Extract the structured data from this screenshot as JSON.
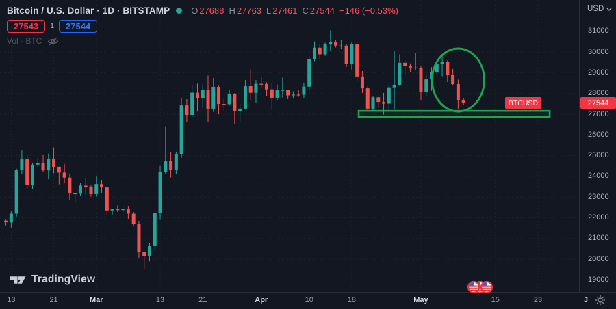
{
  "header": {
    "title": "Bitcoin / U.S. Dollar · 1D · BITSTAMP",
    "ohlc": {
      "o_key": "O",
      "o": "27688",
      "h_key": "H",
      "h": "27763",
      "l_key": "L",
      "l": "27461",
      "c_key": "C",
      "c": "27544",
      "change": "−146 (−0.53%)"
    },
    "bid": "27543",
    "spread": "1",
    "ask": "27544",
    "volume_label": "Vol · BTC"
  },
  "price_axis": {
    "currency": "USD",
    "ticks": [
      31000,
      30000,
      29000,
      28000,
      27000,
      26000,
      25000,
      24000,
      23000,
      22000,
      21000,
      20000,
      19000
    ],
    "last_price_label": "27544",
    "symbol_label": "BTCUSD"
  },
  "time_axis": {
    "ticks": [
      {
        "label": "13",
        "index": 1,
        "major": false
      },
      {
        "label": "21",
        "index": 9,
        "major": false
      },
      {
        "label": "Mar",
        "index": 17,
        "major": true
      },
      {
        "label": "13",
        "index": 29,
        "major": false
      },
      {
        "label": "21",
        "index": 37,
        "major": false
      },
      {
        "label": "Apr",
        "index": 48,
        "major": true
      },
      {
        "label": "10",
        "index": 57,
        "major": false
      },
      {
        "label": "18",
        "index": 65,
        "major": false
      },
      {
        "label": "May",
        "index": 78,
        "major": true
      },
      {
        "label": "15",
        "index": 92,
        "major": false
      },
      {
        "label": "23",
        "index": 100,
        "major": false
      },
      {
        "label": "J",
        "index": 109,
        "major": true
      }
    ]
  },
  "footer": {
    "logo_text": "TradingView"
  },
  "colors": {
    "background": "#131722",
    "up": "#26a69a",
    "down": "#ef5350",
    "accent_red": "#f23645",
    "accent_blue": "#2962ff",
    "drawing_green": "#1ea350",
    "grid": "rgba(151,161,181,0.12)"
  },
  "chart_data": {
    "type": "candlestick",
    "title": "Bitcoin / U.S. Dollar",
    "exchange": "BITSTAMP",
    "interval": "1D",
    "ylim": [
      18419,
      32512
    ],
    "last_price": 27544,
    "legend_position": "top-left",
    "grid": true,
    "candles": [
      [
        "Feb 12",
        21862,
        21906,
        21630,
        21783
      ],
      [
        "Feb 13",
        21774,
        22319,
        21532,
        22199
      ],
      [
        "Feb 14",
        22199,
        24372,
        22064,
        24324
      ],
      [
        "Feb 15",
        24324,
        25250,
        24100,
        24820
      ],
      [
        "Feb 16",
        24820,
        24987,
        23368,
        23586
      ],
      [
        "Feb 17",
        23586,
        24660,
        23380,
        24565
      ],
      [
        "Feb 18",
        24565,
        24877,
        24430,
        24641
      ],
      [
        "Feb 19",
        24641,
        25021,
        24230,
        24288
      ],
      [
        "Feb 20",
        24288,
        25100,
        23860,
        24843
      ],
      [
        "Feb 21",
        24843,
        25399,
        24150,
        24452
      ],
      [
        "Feb 22",
        24452,
        24475,
        23615,
        24182
      ],
      [
        "Feb 23",
        24182,
        24599,
        23671,
        23940
      ],
      [
        "Feb 24",
        23940,
        24134,
        22861,
        23175
      ],
      [
        "Feb 25",
        23175,
        23219,
        22722,
        23157
      ],
      [
        "Feb 26",
        23157,
        23689,
        23062,
        23554
      ],
      [
        "Feb 27",
        23554,
        23897,
        23117,
        23492
      ],
      [
        "Feb 28",
        23492,
        23600,
        23020,
        23141
      ],
      [
        "Mar 1",
        23141,
        23988,
        23020,
        23628
      ],
      [
        "Mar 2",
        23628,
        23796,
        23208,
        23465
      ],
      [
        "Mar 3",
        23465,
        23476,
        22173,
        22354
      ],
      [
        "Mar 4",
        22354,
        22440,
        22155,
        22410
      ],
      [
        "Mar 5",
        22410,
        22600,
        22283,
        22405
      ],
      [
        "Mar 6",
        22405,
        22588,
        22257,
        22410
      ],
      [
        "Mar 7",
        22410,
        22556,
        21927,
        22197
      ],
      [
        "Mar 8",
        22197,
        22290,
        21580,
        21704
      ],
      [
        "Mar 9",
        21704,
        21830,
        20050,
        20363
      ],
      [
        "Mar 10",
        20363,
        20367,
        19549,
        20155
      ],
      [
        "Mar 11",
        20155,
        20792,
        19892,
        20632
      ],
      [
        "Mar 12",
        20632,
        22225,
        20419,
        22219
      ],
      [
        "Mar 13",
        22219,
        24500,
        21899,
        24197
      ],
      [
        "Mar 14",
        24197,
        26386,
        24100,
        24740
      ],
      [
        "Mar 15",
        24740,
        25167,
        23946,
        24310
      ],
      [
        "Mar 16",
        24310,
        25190,
        24123,
        25054
      ],
      [
        "Mar 17",
        25054,
        27756,
        24890,
        27425
      ],
      [
        "Mar 18",
        27425,
        27724,
        26600,
        26965
      ],
      [
        "Mar 19",
        26965,
        28390,
        26867,
        28038
      ],
      [
        "Mar 20",
        28038,
        28472,
        27124,
        27767
      ],
      [
        "Mar 21",
        27767,
        28438,
        27303,
        28160
      ],
      [
        "Mar 22",
        28160,
        28868,
        26601,
        27269
      ],
      [
        "Mar 23",
        27269,
        28750,
        27105,
        28320
      ],
      [
        "Mar 24",
        28320,
        28374,
        27000,
        27493
      ],
      [
        "Mar 25",
        27493,
        27787,
        27156,
        27480
      ],
      [
        "Mar 26",
        27480,
        28194,
        27417,
        27980
      ],
      [
        "Mar 27",
        27980,
        28023,
        26508,
        27140
      ],
      [
        "Mar 28",
        27140,
        27480,
        26657,
        27268
      ],
      [
        "Mar 29",
        27268,
        28649,
        27222,
        28351
      ],
      [
        "Mar 30",
        28351,
        29160,
        27693,
        28033
      ],
      [
        "Mar 31",
        28033,
        28650,
        27550,
        28465
      ],
      [
        "Apr 1",
        28465,
        28810,
        28281,
        28458
      ],
      [
        "Apr 2",
        28458,
        28540,
        27874,
        28199
      ],
      [
        "Apr 3",
        28199,
        28480,
        27240,
        27795
      ],
      [
        "Apr 4",
        27795,
        28433,
        27670,
        28166
      ],
      [
        "Apr 5",
        28166,
        28770,
        27806,
        28171
      ],
      [
        "Apr 6",
        28171,
        28180,
        27732,
        27910
      ],
      [
        "Apr 7",
        27910,
        28108,
        27780,
        27945
      ],
      [
        "Apr 8",
        27945,
        28170,
        27836,
        27939
      ],
      [
        "Apr 9",
        27939,
        28526,
        27780,
        28329
      ],
      [
        "Apr 10",
        28329,
        29780,
        28180,
        29650
      ],
      [
        "Apr 11",
        29650,
        30510,
        29555,
        30210
      ],
      [
        "Apr 12",
        30210,
        30400,
        29650,
        29890
      ],
      [
        "Apr 13",
        29890,
        30450,
        29817,
        30390
      ],
      [
        "Apr 14",
        30390,
        31050,
        30030,
        30480
      ],
      [
        "Apr 15",
        30480,
        30600,
        30220,
        30310
      ],
      [
        "Apr 16",
        30310,
        30580,
        30130,
        30310
      ],
      [
        "Apr 17",
        30310,
        30400,
        29280,
        29440
      ],
      [
        "Apr 18",
        29440,
        30490,
        29155,
        30390
      ],
      [
        "Apr 19",
        30390,
        30420,
        28600,
        28820
      ],
      [
        "Apr 20",
        28820,
        29080,
        28030,
        28250
      ],
      [
        "Apr 21",
        28250,
        28350,
        27150,
        27270
      ],
      [
        "Apr 22",
        27270,
        27890,
        27130,
        27815
      ],
      [
        "Apr 23",
        27815,
        27820,
        27310,
        27590
      ],
      [
        "Apr 24",
        27590,
        28030,
        26980,
        27510
      ],
      [
        "Apr 25",
        27510,
        28390,
        27200,
        28300
      ],
      [
        "Apr 26",
        28300,
        30040,
        27250,
        28420
      ],
      [
        "Apr 27",
        28420,
        29890,
        28360,
        29480
      ],
      [
        "Apr 28",
        29480,
        29585,
        28930,
        29340
      ],
      [
        "Apr 29",
        29340,
        29450,
        29050,
        29250
      ],
      [
        "Apr 30",
        29250,
        29950,
        29110,
        29230
      ],
      [
        "May 1",
        29230,
        29330,
        27680,
        28080
      ],
      [
        "May 2",
        28080,
        28880,
        27880,
        28680
      ],
      [
        "May 3",
        28680,
        29270,
        28130,
        29030
      ],
      [
        "May 4",
        29030,
        29500,
        28890,
        29440
      ],
      [
        "May 5",
        29440,
        29820,
        28830,
        29530
      ],
      [
        "May 6",
        29530,
        29600,
        28550,
        28900
      ],
      [
        "May 7",
        28900,
        29180,
        28380,
        28450
      ],
      [
        "May 8",
        28450,
        28670,
        27270,
        27690
      ],
      [
        "May 9",
        27688,
        27763,
        27461,
        27544
      ]
    ],
    "annotations": {
      "ellipse": {
        "center_index": 85,
        "center_price": 28650,
        "radius_days": 4.9,
        "radius_price": 1520
      },
      "support_box": {
        "start_index": 66.3,
        "end_index": 102.2,
        "top_price": 27160,
        "bottom_price": 26870
      }
    },
    "events_marker": {
      "type": "us-economic-events",
      "count": 3
    }
  }
}
